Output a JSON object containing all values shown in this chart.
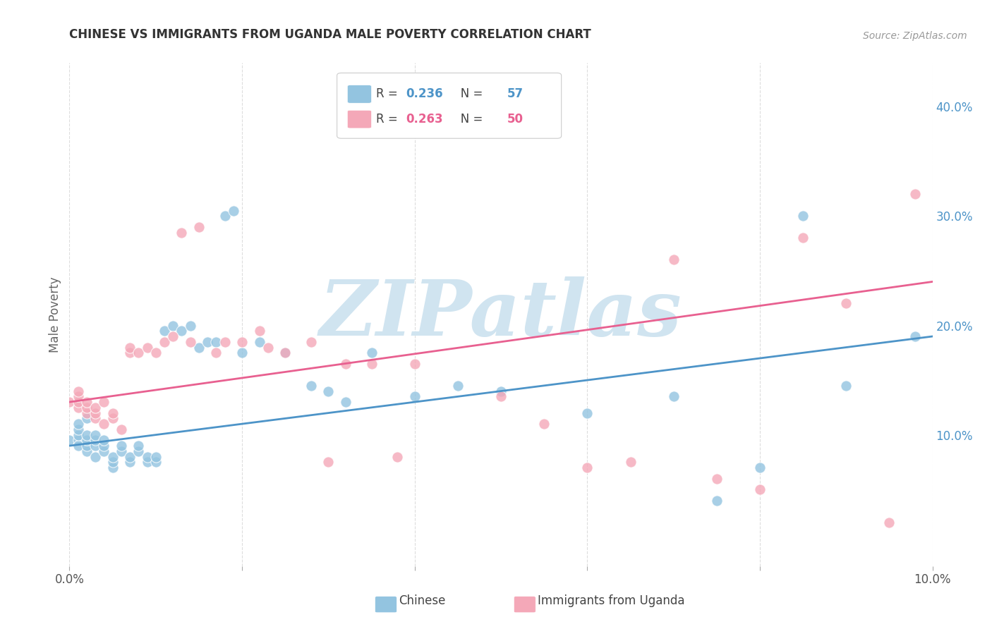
{
  "title": "CHINESE VS IMMIGRANTS FROM UGANDA MALE POVERTY CORRELATION CHART",
  "source": "Source: ZipAtlas.com",
  "ylabel": "Male Poverty",
  "xlim": [
    0.0,
    0.1
  ],
  "ylim": [
    -0.02,
    0.44
  ],
  "xtick_positions": [
    0.0,
    0.02,
    0.04,
    0.06,
    0.08,
    0.1
  ],
  "xtick_labels": [
    "0.0%",
    "",
    "",
    "",
    "",
    "10.0%"
  ],
  "yticks_right": [
    0.1,
    0.2,
    0.3,
    0.4
  ],
  "ytick_labels_right": [
    "10.0%",
    "20.0%",
    "30.0%",
    "40.0%"
  ],
  "series1_color": "#93c4e0",
  "series2_color": "#f4a8b8",
  "line1_color": "#4d94c8",
  "line2_color": "#e86090",
  "watermark": "ZIPatlas",
  "watermark_color": "#d0e4f0",
  "legend_label1": "Chinese",
  "legend_label2": "Immigrants from Uganda",
  "legend_R1": "0.236",
  "legend_N1": "57",
  "legend_R2": "0.263",
  "legend_N2": "50",
  "chinese_x": [
    0.0,
    0.001,
    0.001,
    0.001,
    0.001,
    0.001,
    0.002,
    0.002,
    0.002,
    0.002,
    0.002,
    0.003,
    0.003,
    0.003,
    0.003,
    0.004,
    0.004,
    0.004,
    0.005,
    0.005,
    0.005,
    0.006,
    0.006,
    0.007,
    0.007,
    0.008,
    0.008,
    0.009,
    0.009,
    0.01,
    0.01,
    0.011,
    0.012,
    0.013,
    0.014,
    0.015,
    0.016,
    0.017,
    0.018,
    0.019,
    0.02,
    0.022,
    0.025,
    0.028,
    0.03,
    0.032,
    0.035,
    0.04,
    0.045,
    0.05,
    0.06,
    0.07,
    0.075,
    0.08,
    0.085,
    0.09,
    0.098
  ],
  "chinese_y": [
    0.095,
    0.095,
    0.09,
    0.1,
    0.105,
    0.11,
    0.085,
    0.09,
    0.095,
    0.1,
    0.115,
    0.08,
    0.09,
    0.095,
    0.1,
    0.085,
    0.09,
    0.095,
    0.07,
    0.075,
    0.08,
    0.085,
    0.09,
    0.075,
    0.08,
    0.085,
    0.09,
    0.075,
    0.08,
    0.075,
    0.08,
    0.195,
    0.2,
    0.195,
    0.2,
    0.18,
    0.185,
    0.185,
    0.3,
    0.305,
    0.175,
    0.185,
    0.175,
    0.145,
    0.14,
    0.13,
    0.175,
    0.135,
    0.145,
    0.14,
    0.12,
    0.135,
    0.04,
    0.07,
    0.3,
    0.145,
    0.19
  ],
  "uganda_x": [
    0.0,
    0.001,
    0.001,
    0.001,
    0.001,
    0.002,
    0.002,
    0.002,
    0.003,
    0.003,
    0.003,
    0.004,
    0.004,
    0.005,
    0.005,
    0.006,
    0.007,
    0.007,
    0.008,
    0.009,
    0.01,
    0.011,
    0.012,
    0.013,
    0.014,
    0.015,
    0.017,
    0.018,
    0.02,
    0.022,
    0.023,
    0.025,
    0.028,
    0.03,
    0.032,
    0.035,
    0.038,
    0.04,
    0.045,
    0.05,
    0.055,
    0.06,
    0.065,
    0.07,
    0.075,
    0.08,
    0.085,
    0.09,
    0.095,
    0.098
  ],
  "uganda_y": [
    0.13,
    0.125,
    0.13,
    0.135,
    0.14,
    0.12,
    0.125,
    0.13,
    0.115,
    0.12,
    0.125,
    0.11,
    0.13,
    0.115,
    0.12,
    0.105,
    0.175,
    0.18,
    0.175,
    0.18,
    0.175,
    0.185,
    0.19,
    0.285,
    0.185,
    0.29,
    0.175,
    0.185,
    0.185,
    0.195,
    0.18,
    0.175,
    0.185,
    0.075,
    0.165,
    0.165,
    0.08,
    0.165,
    0.395,
    0.135,
    0.11,
    0.07,
    0.075,
    0.26,
    0.06,
    0.05,
    0.28,
    0.22,
    0.02,
    0.32
  ]
}
